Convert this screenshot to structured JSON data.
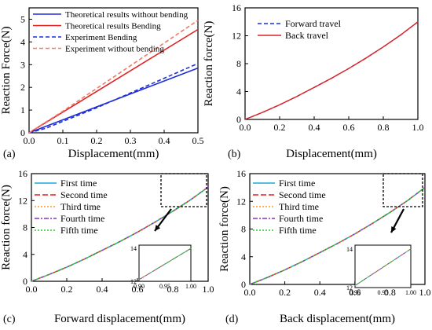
{
  "colors": {
    "blue": "#1f2fd6",
    "red": "#e02020",
    "salmon": "#f07a6a",
    "cyan": "#1aa8e0",
    "orange": "#ff9a1a",
    "purple": "#8a2bd8",
    "green": "#33cc33"
  },
  "chart_data": [
    {
      "panel": "(a)",
      "type": "line",
      "xlabel": "Displacement(mm)",
      "ylabel": "Reaction Force(N)",
      "xlim": [
        0,
        0.5
      ],
      "ylim": [
        0,
        5.5
      ],
      "xticks": [
        "0.0",
        "0.1",
        "0.2",
        "0.3",
        "0.4",
        "0.5"
      ],
      "yticks": [
        "0",
        "1",
        "2",
        "3",
        "4",
        "5"
      ],
      "legend_position": "top-left",
      "series": [
        {
          "name": "Theoretical results without bending",
          "color": "blue",
          "dash": "solid",
          "x": [
            0,
            0.5
          ],
          "y": [
            0,
            2.85
          ]
        },
        {
          "name": "Theoretical results Bending",
          "color": "red",
          "dash": "solid",
          "x": [
            0,
            0.5
          ],
          "y": [
            0,
            4.55
          ]
        },
        {
          "name": "Experiment Bending",
          "color": "blue",
          "dash": "dashed",
          "x": [
            0,
            0.05,
            0.1,
            0.2,
            0.3,
            0.4,
            0.5
          ],
          "y": [
            0,
            0.2,
            0.5,
            1.1,
            1.75,
            2.4,
            3.05
          ]
        },
        {
          "name": "Experiment without bending",
          "color": "salmon",
          "dash": "dashed",
          "x": [
            0,
            0.1,
            0.2,
            0.3,
            0.4,
            0.5
          ],
          "y": [
            0,
            0.95,
            1.95,
            2.95,
            3.95,
            4.95
          ]
        }
      ]
    },
    {
      "panel": "(b)",
      "type": "line",
      "xlabel": "Displacement(mm)",
      "ylabel": "Reaction force(N)",
      "xlim": [
        0,
        1.0
      ],
      "ylim": [
        0,
        16
      ],
      "xticks": [
        "0.0",
        "0.2",
        "0.4",
        "0.6",
        "0.8",
        "1.0"
      ],
      "yticks": [
        "0",
        "4",
        "8",
        "12",
        "16"
      ],
      "legend_position": "top-left",
      "series": [
        {
          "name": "Forward travel",
          "color": "blue",
          "dash": "dashed",
          "x": [
            0,
            0.1,
            0.2,
            0.3,
            0.4,
            0.5,
            0.6,
            0.7,
            0.8,
            0.9,
            1.0
          ],
          "y": [
            0,
            1.0,
            2.1,
            3.3,
            4.6,
            5.9,
            7.3,
            8.8,
            10.4,
            12.1,
            14.0
          ]
        },
        {
          "name": "Back travel",
          "color": "red",
          "dash": "solid",
          "x": [
            0,
            0.1,
            0.2,
            0.3,
            0.4,
            0.5,
            0.6,
            0.7,
            0.8,
            0.9,
            1.0
          ],
          "y": [
            0,
            1.0,
            2.1,
            3.3,
            4.6,
            5.9,
            7.3,
            8.8,
            10.4,
            12.1,
            14.0
          ]
        }
      ]
    },
    {
      "panel": "(c)",
      "type": "line",
      "xlabel": "Forward displacement(mm)",
      "ylabel": "Reaction force(N)",
      "xlim": [
        0,
        1.0
      ],
      "ylim": [
        0,
        16
      ],
      "xticks": [
        "0.0",
        "0.2",
        "0.4",
        "0.6",
        "0.8",
        "1.0"
      ],
      "yticks": [
        "0",
        "4",
        "8",
        "12",
        "16"
      ],
      "legend_position": "top-left",
      "inset": {
        "xlim": [
          0.9,
          1.0
        ],
        "ylim": [
          12,
          14.2
        ],
        "xticks": [
          "0.90",
          "0.95",
          "1.00"
        ],
        "yticks": [
          "12",
          "14"
        ]
      },
      "series": [
        {
          "name": "First time",
          "color": "cyan",
          "dash": "solid",
          "x": [
            0,
            0.1,
            0.2,
            0.3,
            0.4,
            0.5,
            0.6,
            0.7,
            0.8,
            0.9,
            1.0
          ],
          "y": [
            0,
            1.0,
            2.1,
            3.3,
            4.6,
            5.9,
            7.3,
            8.8,
            10.4,
            12.1,
            14.0
          ]
        },
        {
          "name": "Second time",
          "color": "red",
          "dash": "long-dash",
          "x": [
            0,
            0.1,
            0.2,
            0.3,
            0.4,
            0.5,
            0.6,
            0.7,
            0.8,
            0.9,
            1.0
          ],
          "y": [
            0,
            1.0,
            2.1,
            3.3,
            4.6,
            5.9,
            7.3,
            8.8,
            10.4,
            12.1,
            14.0
          ]
        },
        {
          "name": "Third time",
          "color": "orange",
          "dash": "dotted",
          "x": [
            0,
            0.1,
            0.2,
            0.3,
            0.4,
            0.5,
            0.6,
            0.7,
            0.8,
            0.9,
            1.0
          ],
          "y": [
            0,
            1.0,
            2.1,
            3.3,
            4.6,
            5.9,
            7.3,
            8.8,
            10.4,
            12.1,
            14.0
          ]
        },
        {
          "name": "Fourth time",
          "color": "purple",
          "dash": "dash-dot",
          "x": [
            0,
            0.1,
            0.2,
            0.3,
            0.4,
            0.5,
            0.6,
            0.7,
            0.8,
            0.9,
            1.0
          ],
          "y": [
            0,
            1.0,
            2.1,
            3.3,
            4.6,
            5.9,
            7.3,
            8.8,
            10.4,
            12.1,
            14.0
          ]
        },
        {
          "name": "Fifth time",
          "color": "green",
          "dash": "dotted",
          "x": [
            0,
            0.1,
            0.2,
            0.3,
            0.4,
            0.5,
            0.6,
            0.7,
            0.8,
            0.9,
            1.0
          ],
          "y": [
            0,
            1.0,
            2.1,
            3.3,
            4.6,
            5.9,
            7.3,
            8.8,
            10.4,
            12.1,
            14.0
          ]
        }
      ]
    },
    {
      "panel": "(d)",
      "type": "line",
      "xlabel": "Back displacement(mm)",
      "ylabel": "Reaction force(N)",
      "xlim": [
        0,
        1.0
      ],
      "ylim": [
        0,
        16
      ],
      "xticks": [
        "0.0",
        "0.2",
        "0.4",
        "0.6",
        "0.8",
        "1.0"
      ],
      "yticks": [
        "0",
        "4",
        "8",
        "12",
        "16"
      ],
      "legend_position": "top-left",
      "inset": {
        "xlim": [
          0.9,
          1.0
        ],
        "ylim": [
          12,
          14.2
        ],
        "xticks": [
          "0.90",
          "0.95",
          "1.00"
        ],
        "yticks": [
          "12",
          "14"
        ]
      },
      "series": [
        {
          "name": "First time",
          "color": "cyan",
          "dash": "solid",
          "x": [
            0,
            0.1,
            0.2,
            0.3,
            0.4,
            0.5,
            0.6,
            0.7,
            0.8,
            0.9,
            1.0
          ],
          "y": [
            0,
            1.0,
            2.1,
            3.3,
            4.6,
            5.9,
            7.3,
            8.8,
            10.4,
            12.1,
            14.0
          ]
        },
        {
          "name": "Second time",
          "color": "red",
          "dash": "long-dash",
          "x": [
            0,
            0.1,
            0.2,
            0.3,
            0.4,
            0.5,
            0.6,
            0.7,
            0.8,
            0.9,
            1.0
          ],
          "y": [
            0,
            1.0,
            2.1,
            3.3,
            4.6,
            5.9,
            7.3,
            8.8,
            10.4,
            12.1,
            14.0
          ]
        },
        {
          "name": "Third time",
          "color": "orange",
          "dash": "dotted",
          "x": [
            0,
            0.1,
            0.2,
            0.3,
            0.4,
            0.5,
            0.6,
            0.7,
            0.8,
            0.9,
            1.0
          ],
          "y": [
            0,
            1.0,
            2.1,
            3.3,
            4.6,
            5.9,
            7.3,
            8.8,
            10.4,
            12.1,
            14.0
          ]
        },
        {
          "name": "Fourth time",
          "color": "purple",
          "dash": "dash-dot",
          "x": [
            0,
            0.1,
            0.2,
            0.3,
            0.4,
            0.5,
            0.6,
            0.7,
            0.8,
            0.9,
            1.0
          ],
          "y": [
            0,
            1.0,
            2.1,
            3.3,
            4.6,
            5.9,
            7.3,
            8.8,
            10.4,
            12.1,
            14.0
          ]
        },
        {
          "name": "Fifth time",
          "color": "green",
          "dash": "dotted",
          "x": [
            0,
            0.1,
            0.2,
            0.3,
            0.4,
            0.5,
            0.6,
            0.7,
            0.8,
            0.9,
            1.0
          ],
          "y": [
            0,
            1.0,
            2.1,
            3.3,
            4.6,
            5.9,
            7.3,
            8.8,
            10.4,
            12.1,
            14.0
          ]
        }
      ]
    }
  ]
}
